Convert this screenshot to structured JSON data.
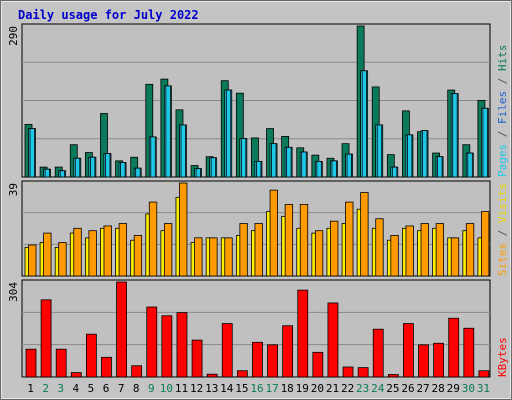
{
  "title": "Daily usage for July 2022",
  "days": [
    "1",
    "2",
    "3",
    "4",
    "5",
    "6",
    "7",
    "8",
    "9",
    "10",
    "11",
    "12",
    "13",
    "14",
    "15",
    "16",
    "17",
    "18",
    "19",
    "20",
    "21",
    "22",
    "23",
    "24",
    "25",
    "26",
    "27",
    "28",
    "29",
    "30",
    "31"
  ],
  "weekend_days": [
    2,
    3,
    9,
    10,
    16,
    17,
    23,
    24,
    30,
    31
  ],
  "colors": {
    "hits": "#0b7a5a",
    "files": "#29d9f5",
    "pages": "#20c8e8",
    "sites": "#ff9a00",
    "visits": "#ffee00",
    "kbytes": "#ff0000",
    "weekday_label": "#000000",
    "weekend_label": "#0b7a5a",
    "title": "#0000cc",
    "background": "#c0c0c0"
  },
  "chart_data": [
    {
      "type": "bar",
      "name": "hits-files-pages",
      "ymax": 290,
      "ymax_label": "290",
      "legend_parts": [
        {
          "text": "Pages",
          "color": "#20c8e8"
        },
        {
          "text": " / ",
          "color": "#555555"
        },
        {
          "text": "Files",
          "color": "#1f5fd0"
        },
        {
          "text": " / ",
          "color": "#555555"
        },
        {
          "text": "Hits",
          "color": "#0b7a5a"
        }
      ],
      "series": [
        {
          "name": "Hits",
          "values": [
            101,
            19,
            19,
            62,
            47,
            122,
            31,
            38,
            178,
            188,
            129,
            22,
            39,
            185,
            161,
            75,
            93,
            78,
            56,
            42,
            36,
            64,
            290,
            173,
            43,
            127,
            87,
            46,
            167,
            62,
            147
          ]
        },
        {
          "name": "Files",
          "values": [
            93,
            15,
            12,
            36,
            38,
            45,
            28,
            17,
            77,
            175,
            100,
            16,
            37,
            167,
            74,
            30,
            64,
            57,
            48,
            30,
            31,
            44,
            204,
            100,
            19,
            81,
            89,
            39,
            160,
            46,
            132
          ]
        },
        {
          "name": "Pages",
          "values": [
            93,
            15,
            12,
            36,
            38,
            45,
            28,
            17,
            77,
            175,
            100,
            16,
            37,
            167,
            74,
            30,
            64,
            57,
            48,
            30,
            31,
            44,
            204,
            100,
            19,
            81,
            89,
            39,
            160,
            46,
            132
          ]
        }
      ]
    },
    {
      "type": "bar",
      "name": "visits-sites",
      "ymax": 39,
      "ymax_label": "39",
      "legend_parts": [
        {
          "text": "Sites",
          "color": "#ff9a00"
        },
        {
          "text": " / ",
          "color": "#555555"
        },
        {
          "text": "Visits",
          "color": "#e8d800"
        }
      ],
      "series": [
        {
          "name": "Visits",
          "values": [
            12,
            14,
            12,
            18,
            16,
            20,
            20,
            15,
            26,
            19,
            33,
            14,
            16,
            16,
            17,
            19,
            27,
            25,
            20,
            18,
            20,
            22,
            28,
            20,
            15,
            20,
            19,
            20,
            16,
            19,
            16
          ]
        },
        {
          "name": "Sites",
          "values": [
            13,
            18,
            14,
            20,
            19,
            21,
            22,
            17,
            31,
            22,
            39,
            16,
            16,
            16,
            22,
            22,
            36,
            30,
            30,
            19,
            23,
            31,
            35,
            24,
            17,
            21,
            22,
            22,
            16,
            22,
            27
          ]
        }
      ]
    },
    {
      "type": "bar",
      "name": "kbytes",
      "ymax": 304,
      "ymax_label": "304",
      "legend_parts": [
        {
          "text": "KBytes",
          "color": "#ff0000"
        }
      ],
      "series": [
        {
          "name": "KBytes",
          "values": [
            89,
            247,
            89,
            14,
            137,
            63,
            304,
            36,
            224,
            196,
            206,
            118,
            9,
            171,
            20,
            111,
            103,
            164,
            278,
            79,
            237,
            32,
            30,
            153,
            8,
            171,
            103,
            108,
            188,
            156,
            20
          ]
        }
      ]
    }
  ]
}
